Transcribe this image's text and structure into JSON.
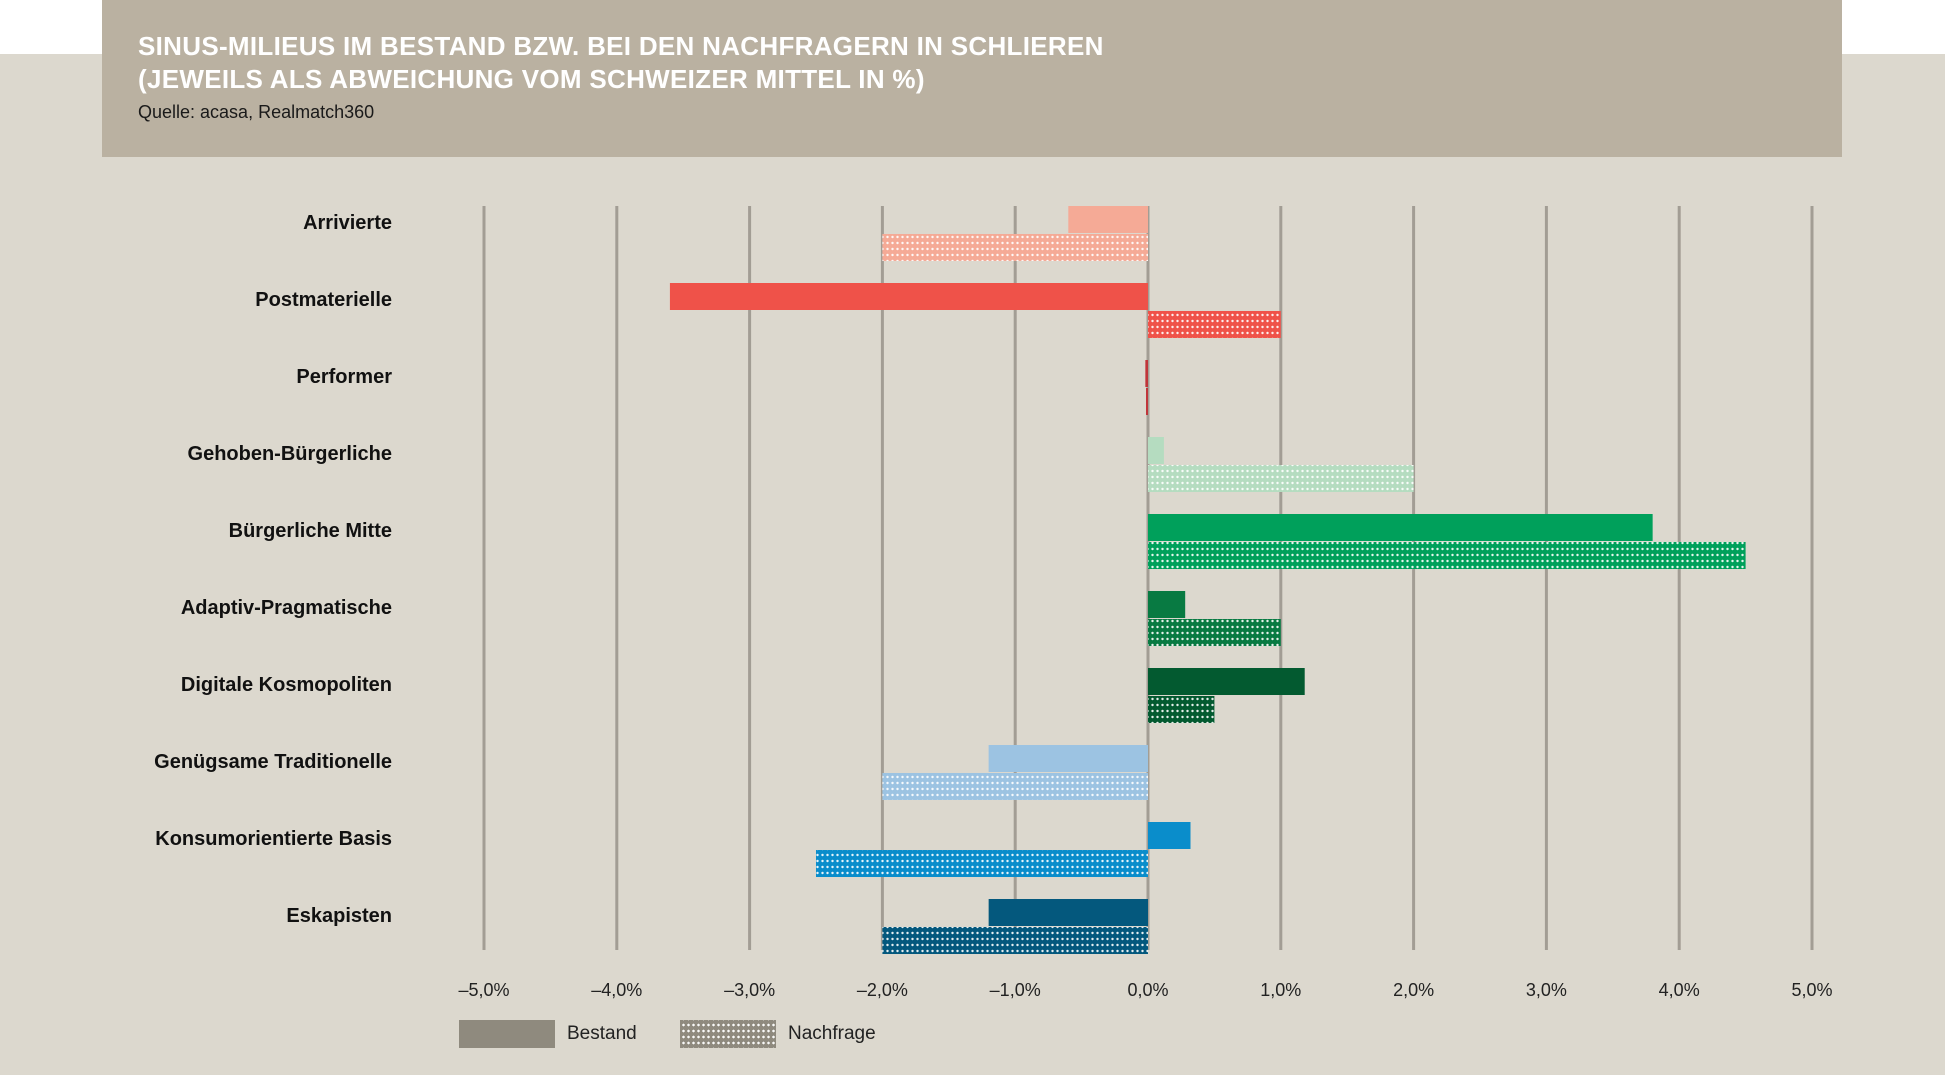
{
  "header": {
    "title_line1": "SINUS-MILIEUS IM BESTAND BZW. BEI DEN NACHFRAGERN IN SCHLIEREN",
    "title_line2": "(JEWEILS ALS ABWEICHUNG VOM SCHWEIZER MITTEL IN %)",
    "source": "Quelle: acasa, Realmatch360"
  },
  "legend": {
    "bestand": "Bestand",
    "nachfrage": "Nachfrage"
  },
  "chart_data": {
    "type": "bar",
    "orientation": "horizontal",
    "title": "SINUS-MILIEUS IM BESTAND BZW. BEI DEN NACHFRAGERN IN SCHLIEREN (JEWEILS ALS ABWEICHUNG VOM SCHWEIZER MITTEL IN %)",
    "xlim": [
      -5,
      5
    ],
    "x_ticks": [
      -5,
      -4,
      -3,
      -2,
      -1,
      0,
      1,
      2,
      3,
      4,
      5
    ],
    "x_tick_labels": [
      "–5,0%",
      "–4,0%",
      "–3,0%",
      "–2,0%",
      "–1,0%",
      "0,0%",
      "1,0%",
      "2,0%",
      "3,0%",
      "4,0%",
      "5,0%"
    ],
    "grid": "vertical",
    "legend_position": "bottom-left",
    "categories": [
      "Arrivierte",
      "Postmaterielle",
      "Performer",
      "Gehoben-Bürgerliche",
      "Bürgerliche Mitte",
      "Adaptiv-Pragmatische",
      "Digitale Kosmopoliten",
      "Genügsame Traditionelle",
      "Konsumorientierte Basis",
      "Eskapisten"
    ],
    "colors": [
      "#f5aa96",
      "#ef5249",
      "#c0353a",
      "#b5dcc0",
      "#00a05b",
      "#087a42",
      "#035a30",
      "#9cc3e2",
      "#0a8dcb",
      "#04587d"
    ],
    "series": [
      {
        "name": "Bestand",
        "style": "solid",
        "values": [
          -0.6,
          -3.6,
          -0.02,
          0.12,
          3.8,
          0.28,
          1.18,
          -1.2,
          0.32,
          -1.2
        ]
      },
      {
        "name": "Nachfrage",
        "style": "dotted",
        "values": [
          -2.0,
          1.0,
          0.0,
          2.0,
          4.5,
          1.0,
          0.5,
          -2.0,
          -2.5,
          -2.0
        ]
      }
    ]
  }
}
